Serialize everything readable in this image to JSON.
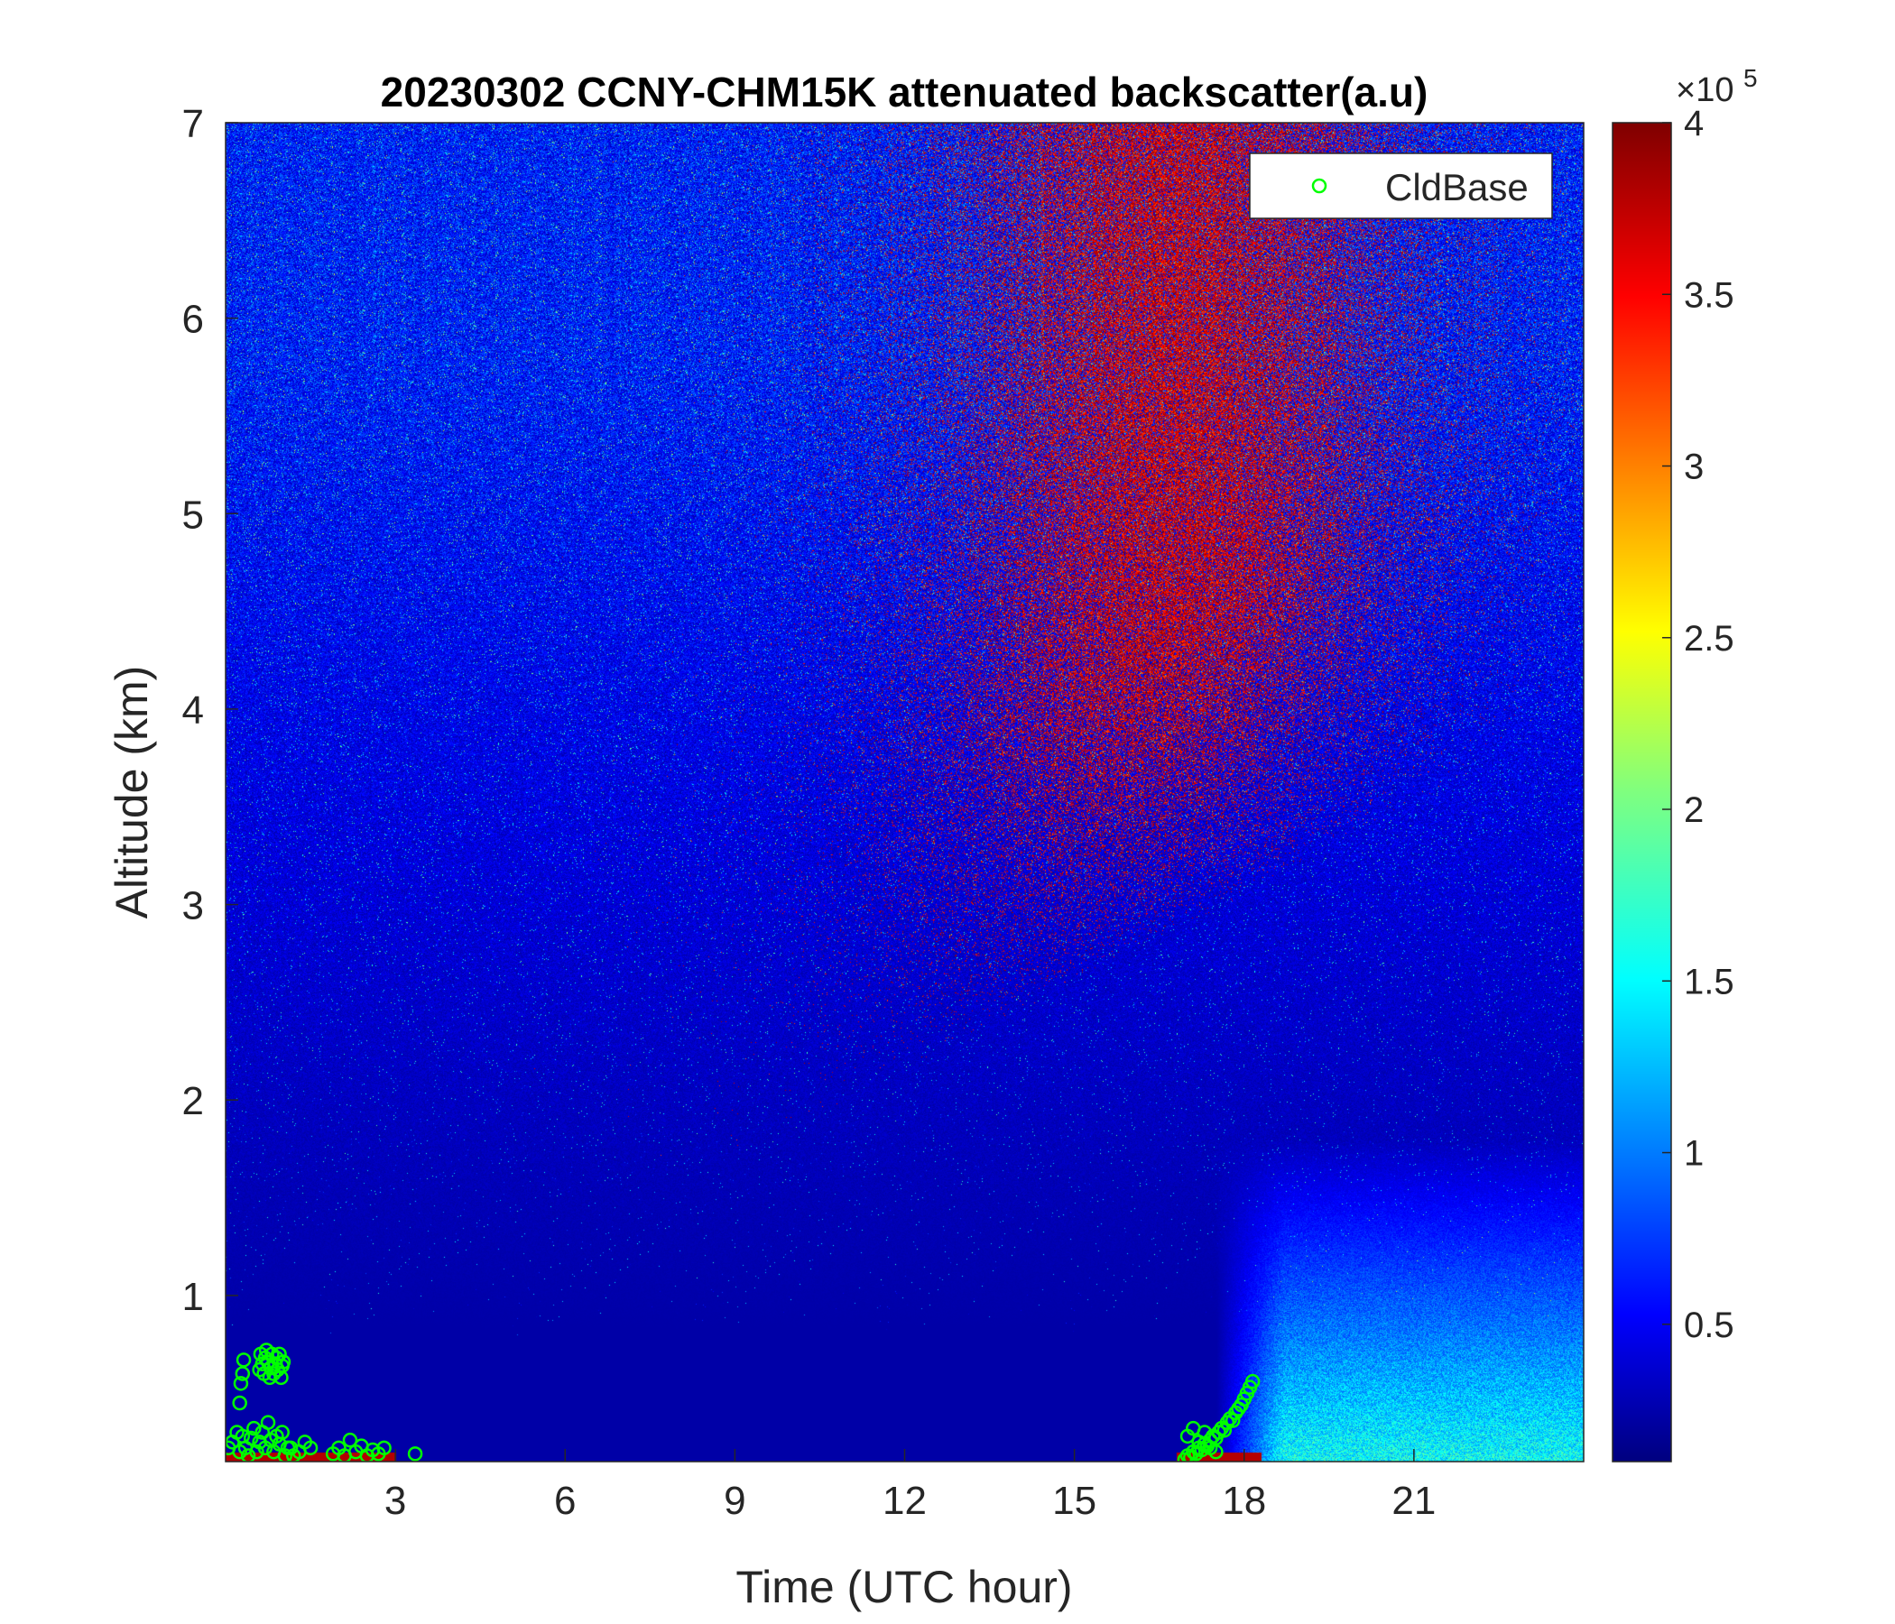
{
  "chart_data": {
    "type": "heatmap",
    "title": "20230302 CCNY-CHM15K attenuated backscatter(a.u)",
    "xlabel": "Time (UTC hour)",
    "ylabel": "Altitude (km)",
    "xlim": [
      0,
      24
    ],
    "ylim": [
      0.15,
      7
    ],
    "x_ticks": [
      3,
      6,
      9,
      12,
      15,
      18,
      21
    ],
    "y_ticks": [
      1,
      2,
      3,
      4,
      5,
      6,
      7
    ],
    "colorbar": {
      "colormap": "jet",
      "range": [
        0.1,
        4
      ],
      "ticks": [
        0.5,
        1,
        1.5,
        2,
        2.5,
        3,
        3.5,
        4
      ],
      "tick_labels": [
        "0.5",
        "1",
        "1.5",
        "2",
        "2.5",
        "3",
        "3.5",
        "4"
      ],
      "multiplier_base": "×10",
      "multiplier_exponent": "5"
    },
    "legend": {
      "placement": "top-right",
      "entries": [
        "CldBase"
      ]
    },
    "series": [
      {
        "name": "CldBase",
        "marker": "circle",
        "color": "#00ff00",
        "x": [
          0.05,
          0.12,
          0.2,
          0.25,
          0.3,
          0.35,
          0.4,
          0.45,
          0.5,
          0.55,
          0.6,
          0.65,
          0.7,
          0.75,
          0.8,
          0.85,
          0.9,
          0.95,
          1.0,
          1.05,
          1.1,
          0.6,
          0.62,
          0.65,
          0.68,
          0.7,
          0.72,
          0.75,
          0.78,
          0.8,
          0.82,
          0.85,
          0.88,
          0.9,
          0.92,
          0.95,
          0.98,
          1.0,
          1.02,
          0.25,
          0.27,
          0.3,
          0.32,
          1.15,
          1.2,
          1.3,
          1.4,
          1.5,
          1.9,
          2.0,
          2.1,
          2.2,
          2.3,
          2.4,
          2.5,
          2.6,
          2.7,
          2.8,
          3.35,
          16.95,
          17.0,
          17.05,
          17.1,
          17.15,
          17.2,
          17.25,
          17.3,
          17.35,
          17.4,
          17.45,
          17.5,
          17.55,
          17.6,
          17.65,
          17.7,
          17.75,
          17.8,
          17.85,
          17.9,
          17.95,
          18.0,
          18.05,
          18.1,
          18.15,
          17.0,
          17.1,
          17.2,
          17.3,
          17.4,
          17.5
        ],
        "y": [
          0.22,
          0.25,
          0.3,
          0.2,
          0.28,
          0.22,
          0.18,
          0.27,
          0.32,
          0.2,
          0.25,
          0.3,
          0.22,
          0.35,
          0.26,
          0.2,
          0.28,
          0.24,
          0.3,
          0.18,
          0.22,
          0.62,
          0.7,
          0.65,
          0.6,
          0.68,
          0.72,
          0.66,
          0.58,
          0.63,
          0.7,
          0.6,
          0.65,
          0.68,
          0.62,
          0.7,
          0.58,
          0.64,
          0.66,
          0.45,
          0.55,
          0.6,
          0.67,
          0.22,
          0.18,
          0.2,
          0.25,
          0.22,
          0.19,
          0.22,
          0.18,
          0.26,
          0.2,
          0.23,
          0.18,
          0.21,
          0.19,
          0.22,
          0.19,
          0.16,
          0.18,
          0.17,
          0.2,
          0.19,
          0.22,
          0.21,
          0.24,
          0.23,
          0.26,
          0.28,
          0.27,
          0.3,
          0.32,
          0.31,
          0.35,
          0.37,
          0.36,
          0.4,
          0.42,
          0.44,
          0.47,
          0.5,
          0.53,
          0.56,
          0.28,
          0.32,
          0.25,
          0.3,
          0.22,
          0.2
        ]
      }
    ],
    "image_description_regions": [
      {
        "x": [
          0,
          24
        ],
        "y": [
          0.15,
          7
        ],
        "value_scale": "background noise, increasing with altitude"
      },
      {
        "x": [
          11,
          22
        ],
        "y": [
          2.5,
          7
        ],
        "value_scale": "elevated values ~4 (dark red speckle)"
      },
      {
        "x": [
          17.5,
          24
        ],
        "y": [
          0.15,
          1.8
        ],
        "value_scale": "aerosol layer ~0.8-2 (light blue)"
      }
    ]
  }
}
